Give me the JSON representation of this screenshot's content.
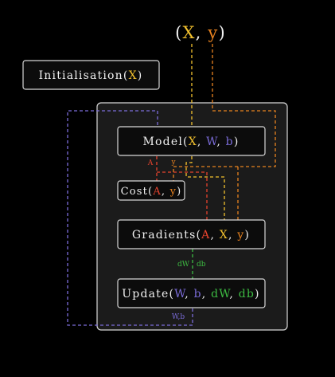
{
  "colors": {
    "background": "#000000",
    "outline": "#d8d8d8",
    "panel_fill": "#1b1b1b",
    "box_fill": "#0c0c0c",
    "text": "#f0f0f0",
    "X": "#f2c12e",
    "y": "#e8821f",
    "A": "#e5432e",
    "W": "#7b6cd9",
    "b": "#7b6cd9",
    "dW": "#3dbb42",
    "db": "#3dbb42"
  },
  "input": {
    "open": "(",
    "X": "X",
    "comma": ",",
    "y": "y",
    "close": ")"
  },
  "init": {
    "name": "Initialisation",
    "open": "(",
    "X": "X",
    "close": ")"
  },
  "model": {
    "name": "Model",
    "open": "(",
    "X": "X",
    "sep1": ", ",
    "W": "W",
    "sep2": ", ",
    "b": "b",
    "close": ")"
  },
  "cost": {
    "name": "Cost",
    "open": "(",
    "A": "A",
    "sep": ", ",
    "y": "y",
    "close": ")"
  },
  "gradients": {
    "name": "Gradients",
    "open": "(",
    "A": "A",
    "sep1": ", ",
    "X": "X",
    "sep2": ", ",
    "y": "y",
    "close": ")"
  },
  "update": {
    "name": "Update",
    "open": "(",
    "W": "W",
    "sep1": ", ",
    "b": "b",
    "sep2": ", ",
    "dW": "dW",
    "sep3": ", ",
    "db": "db",
    "close": ")"
  },
  "annotations": {
    "A": "A",
    "y": "y",
    "dW": "dW",
    "db": "db",
    "Wb": "W,b"
  }
}
